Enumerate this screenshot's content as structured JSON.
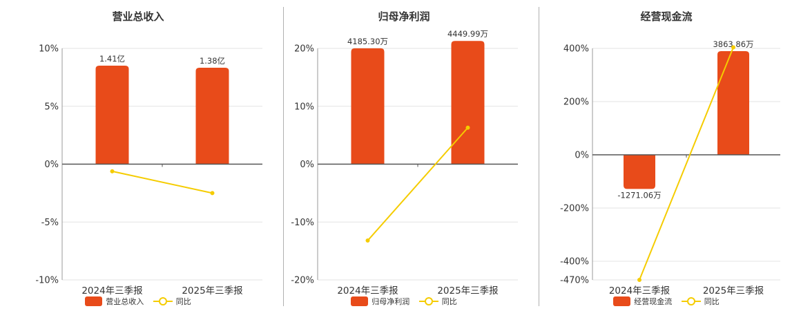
{
  "colors": {
    "bar": "#e84b1a",
    "line": "#f5cc00",
    "axis": "#555555",
    "grid": "#e3e3e3",
    "text": "#333333"
  },
  "chart_data": [
    {
      "type": "bar",
      "title": "营业总收入",
      "categories": [
        "2024年三季报",
        "2025年三季报"
      ],
      "bar_values": [
        1.41,
        1.38
      ],
      "bar_unit": "亿",
      "bar_labels": [
        "1.41亿",
        "1.38亿"
      ],
      "line_values": [
        -0.62,
        -2.5
      ],
      "yticks": [
        10,
        5,
        0,
        -5,
        -10
      ],
      "ytick_labels": [
        "10%",
        "5%",
        "0%",
        "-5%",
        "-10%"
      ],
      "ylim": [
        -10,
        10
      ],
      "bar_axis_max": 1.41,
      "legend": {
        "bar": "营业总收入",
        "line": "同比"
      }
    },
    {
      "type": "bar",
      "title": "归母净利润",
      "categories": [
        "2024年三季报",
        "2025年三季报"
      ],
      "bar_values": [
        4185.3,
        4449.99
      ],
      "bar_unit": "万",
      "bar_labels": [
        "4185.30万",
        "4449.99万"
      ],
      "line_values": [
        -13.2,
        6.3
      ],
      "yticks": [
        20,
        10,
        0,
        -10,
        -20
      ],
      "ytick_labels": [
        "20%",
        "10%",
        "0%",
        "-10%",
        "-20%"
      ],
      "ylim": [
        -20,
        20
      ],
      "bar_axis_max": 5230,
      "legend": {
        "bar": "归母净利润",
        "line": "同比"
      }
    },
    {
      "type": "bar",
      "title": "经营现金流",
      "categories": [
        "2024年三季报",
        "2025年三季报"
      ],
      "bar_values": [
        -1271.06,
        3863.86
      ],
      "bar_unit": "万",
      "bar_labels": [
        "-1271.06万",
        "3863.86万"
      ],
      "line_values": [
        -470,
        404
      ],
      "yticks": [
        400,
        200,
        0,
        -200,
        -400,
        -470
      ],
      "ytick_labels": [
        "400%",
        "200%",
        "0%",
        "-200%",
        "-400%",
        "-470%"
      ],
      "ylim": [
        -470,
        400
      ],
      "bar_axis_max": 3863.86,
      "legend": {
        "bar": "经营现金流",
        "line": "同比"
      }
    }
  ]
}
